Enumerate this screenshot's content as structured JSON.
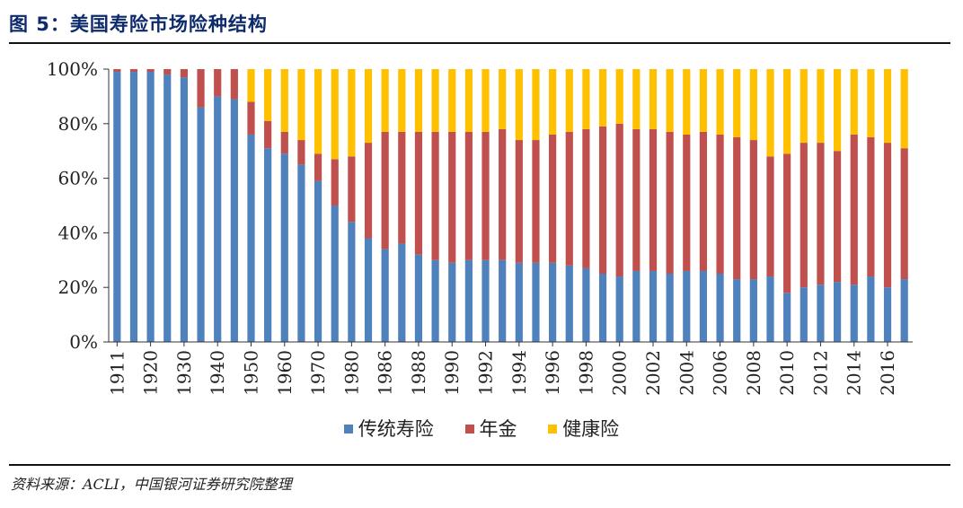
{
  "title": "图 5：美国寿险市场险种结构",
  "source": "资料来源：ACLI，中国银河证券研究院整理",
  "chart_data": {
    "type": "bar",
    "stacked": true,
    "categories": [
      "1911",
      "1915",
      "1920",
      "1925",
      "1930",
      "1935",
      "1940",
      "1945",
      "1950",
      "1955",
      "1960",
      "1965",
      "1970",
      "1975",
      "1980",
      "1985",
      "1986",
      "1987",
      "1988",
      "1989",
      "1990",
      "1991",
      "1992",
      "1993",
      "1994",
      "1995",
      "1996",
      "1997",
      "1998",
      "1999",
      "2000",
      "2001",
      "2002",
      "2003",
      "2004",
      "2005",
      "2006",
      "2007",
      "2008",
      "2009",
      "2010",
      "2011",
      "2012",
      "2013",
      "2014",
      "2015",
      "2016",
      "2017"
    ],
    "tick_labels": [
      "1911",
      "1920",
      "1930",
      "1940",
      "1950",
      "1960",
      "1970",
      "1980",
      "1986",
      "1988",
      "1990",
      "1992",
      "1994",
      "1996",
      "1998",
      "2000",
      "2002",
      "2004",
      "2006",
      "2008",
      "2010",
      "2012",
      "2014",
      "2016"
    ],
    "series": [
      {
        "name": "传统寿险",
        "color": "#4f81bd",
        "values": [
          99,
          99,
          99,
          98,
          97,
          86,
          90,
          89,
          76,
          71,
          69,
          65,
          59,
          50,
          44,
          38,
          34,
          36,
          32,
          30,
          29,
          30,
          30,
          30,
          29,
          29,
          29,
          28,
          27,
          25,
          24,
          26,
          26,
          25,
          26,
          26,
          25,
          23,
          23,
          24,
          18,
          20,
          21,
          22,
          21,
          24,
          20,
          23
        ]
      },
      {
        "name": "年金",
        "color": "#c0504d",
        "values": [
          1,
          1,
          1,
          2,
          3,
          14,
          10,
          11,
          12,
          10,
          8,
          9,
          10,
          17,
          24,
          35,
          43,
          41,
          45,
          47,
          48,
          47,
          47,
          48,
          45,
          45,
          47,
          49,
          51,
          54,
          56,
          52,
          52,
          52,
          50,
          51,
          51,
          52,
          51,
          44,
          51,
          53,
          52,
          48,
          55,
          51,
          53,
          48
        ]
      },
      {
        "name": "健康险",
        "color": "#ffc000",
        "values": [
          0,
          0,
          0,
          0,
          0,
          0,
          0,
          0,
          12,
          19,
          23,
          26,
          31,
          33,
          32,
          27,
          23,
          23,
          23,
          23,
          23,
          23,
          23,
          22,
          26,
          26,
          24,
          23,
          22,
          21,
          20,
          22,
          22,
          23,
          24,
          23,
          24,
          25,
          26,
          32,
          31,
          27,
          27,
          30,
          24,
          25,
          27,
          29
        ]
      }
    ],
    "ylim": [
      0,
      100
    ],
    "yticks": [
      "0%",
      "20%",
      "40%",
      "60%",
      "80%",
      "100%"
    ],
    "legend_position": "bottom"
  }
}
